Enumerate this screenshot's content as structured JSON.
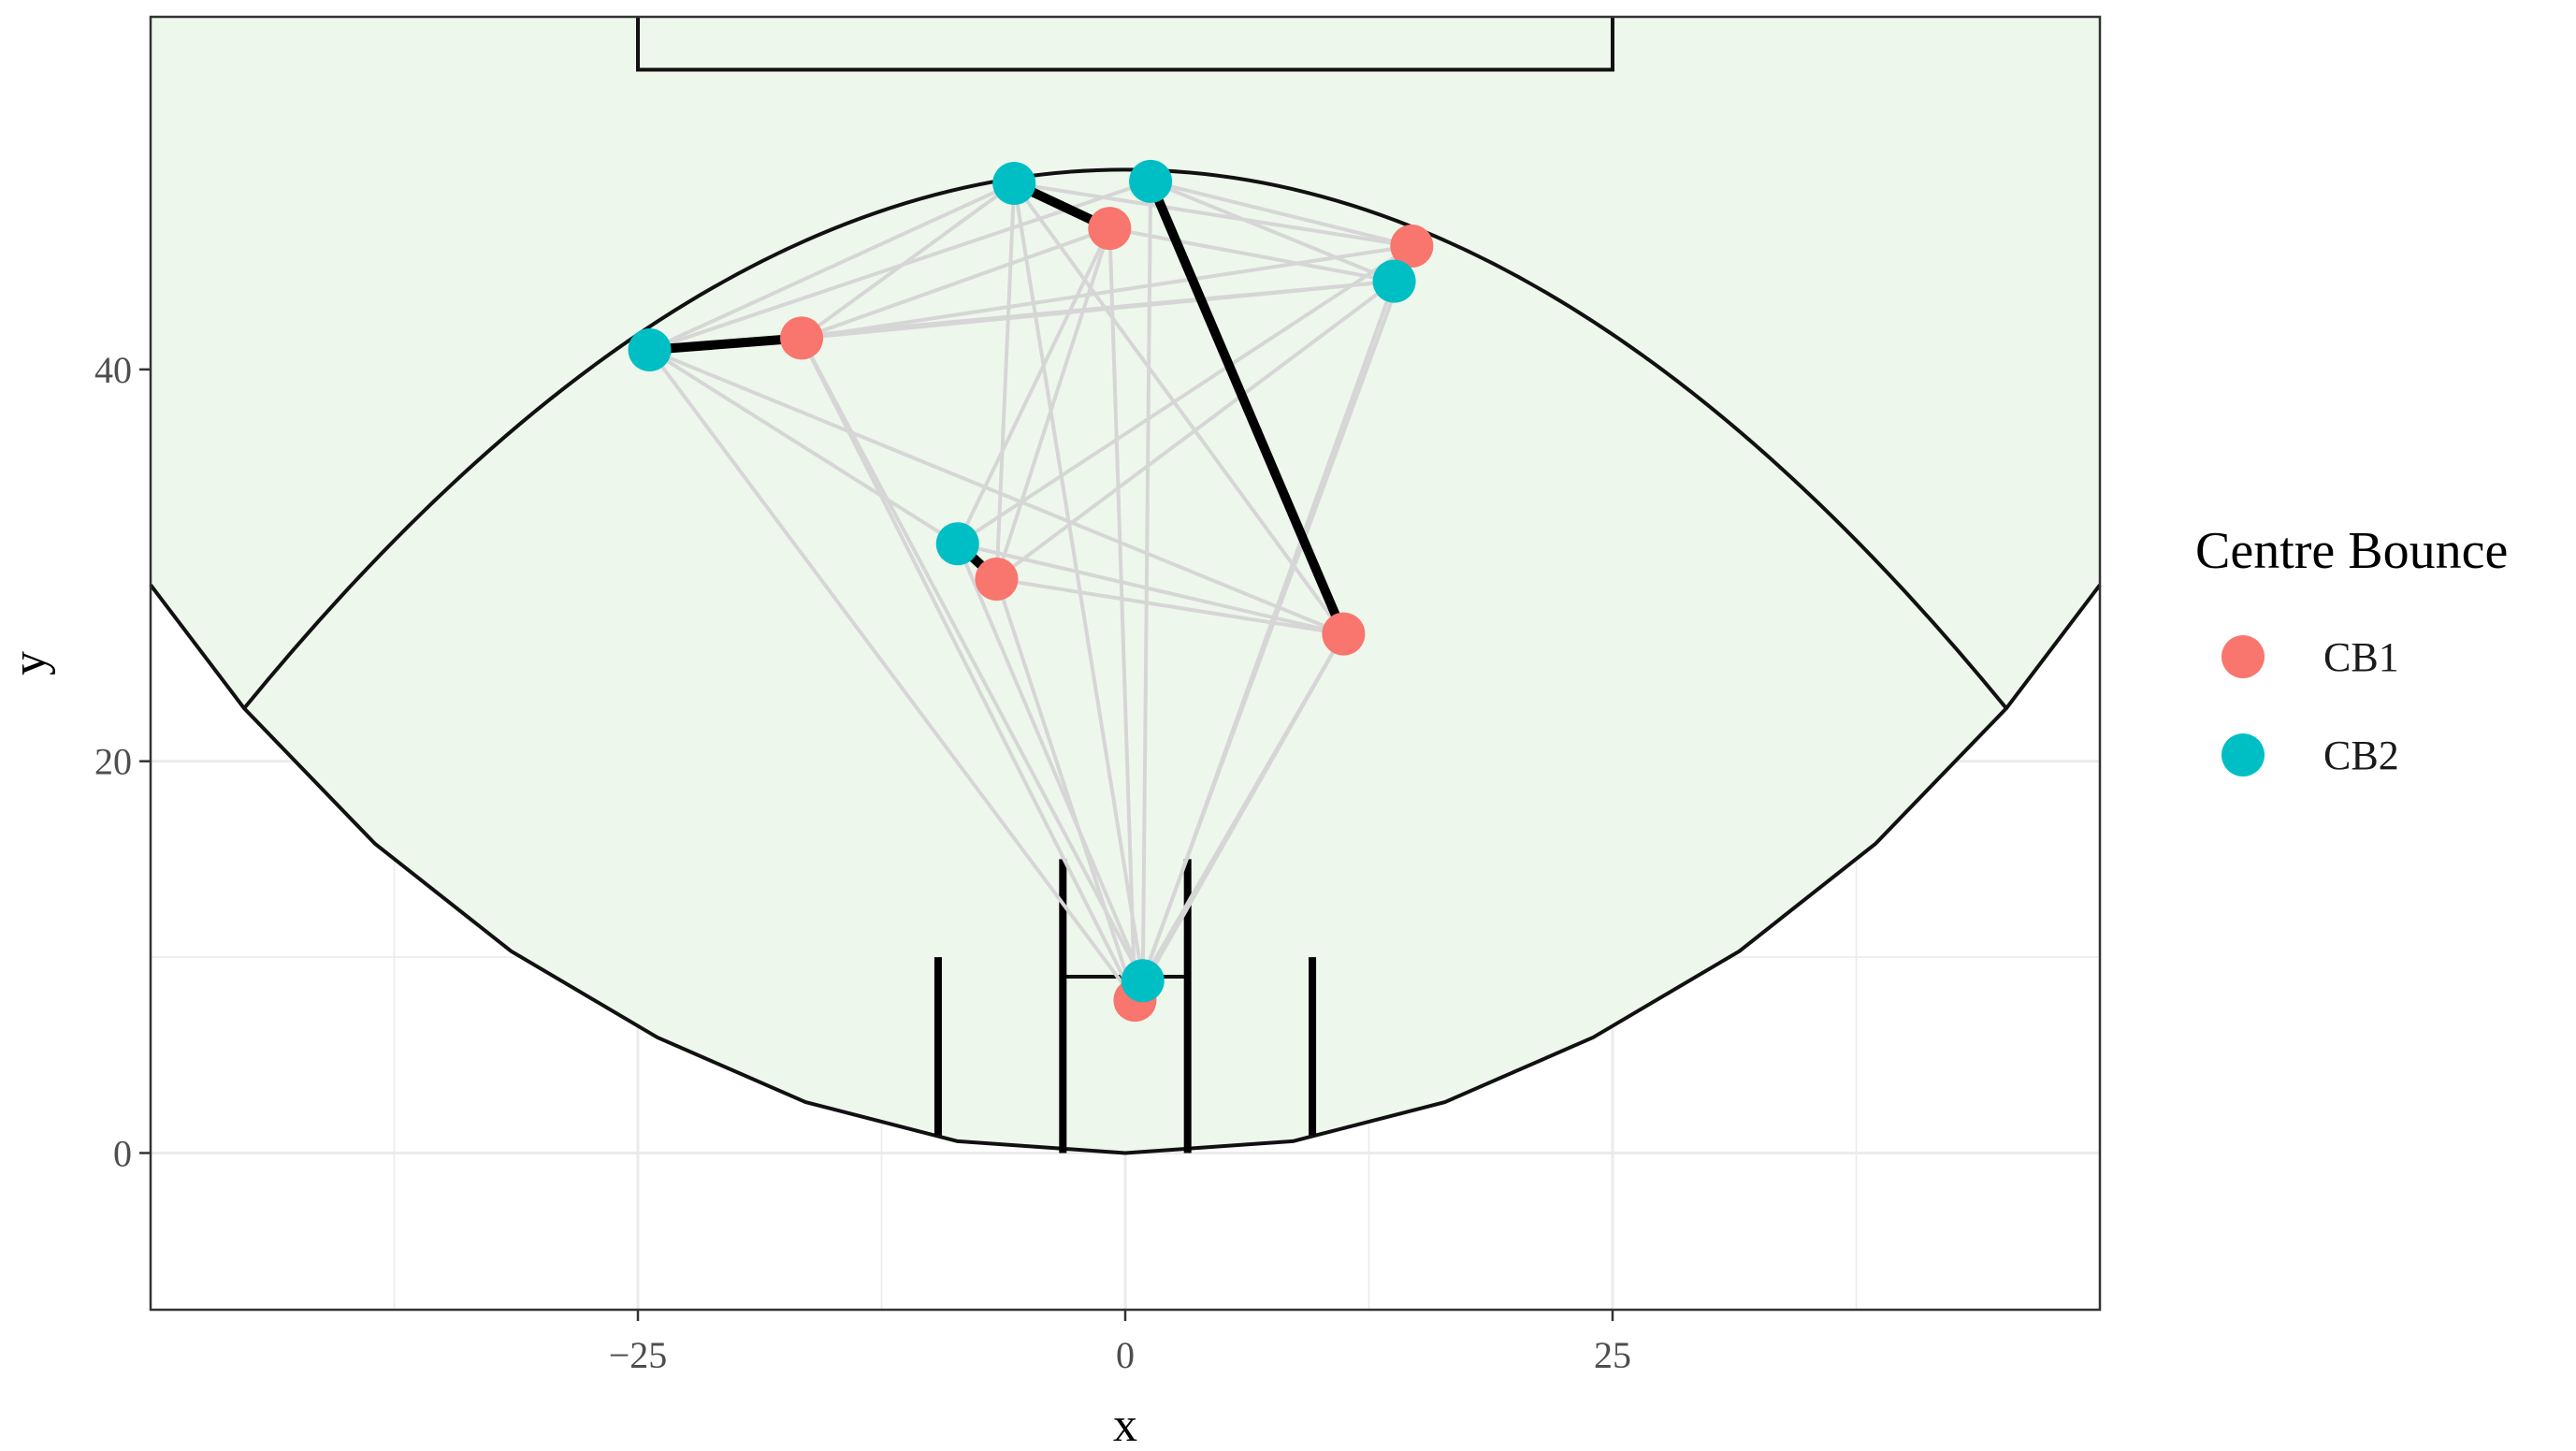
{
  "chart_data": {
    "type": "scatter",
    "xlabel": "x",
    "ylabel": "y",
    "xlim": [
      -50,
      50
    ],
    "ylim": [
      -8,
      58
    ],
    "x_ticks": [
      -25,
      0,
      25
    ],
    "x_tick_labels": [
      "−25",
      "0",
      "25"
    ],
    "y_ticks": [
      0,
      20,
      40
    ],
    "y_tick_labels": [
      "0",
      "20",
      "40"
    ],
    "grid": true,
    "legend": {
      "title": "Centre Bounce",
      "position": "right",
      "entries": [
        {
          "label": "CB1",
          "color": "#F8766D"
        },
        {
          "label": "CB2",
          "color": "#00BFC4"
        }
      ]
    },
    "series": [
      {
        "name": "CB1",
        "color": "#F8766D",
        "points": [
          {
            "x": -16.6,
            "y": 41.6
          },
          {
            "x": -0.8,
            "y": 47.2
          },
          {
            "x": 14.7,
            "y": 46.3
          },
          {
            "x": 11.2,
            "y": 26.5
          },
          {
            "x": -6.6,
            "y": 29.3
          },
          {
            "x": 0.5,
            "y": 7.8
          }
        ]
      },
      {
        "name": "CB2",
        "color": "#00BFC4",
        "points": [
          {
            "x": -24.4,
            "y": 41.0
          },
          {
            "x": -5.7,
            "y": 49.5
          },
          {
            "x": 1.3,
            "y": 49.6
          },
          {
            "x": 13.8,
            "y": 44.5
          },
          {
            "x": -8.6,
            "y": 31.1
          },
          {
            "x": 0.9,
            "y": 8.8
          }
        ]
      }
    ],
    "grey_links": [
      [
        [
          -24.4,
          41.0
        ],
        [
          -16.6,
          41.6
        ]
      ],
      [
        [
          -24.4,
          41.0
        ],
        [
          13.8,
          44.5
        ]
      ],
      [
        [
          -24.4,
          41.0
        ],
        [
          -5.7,
          49.5
        ]
      ],
      [
        [
          -24.4,
          41.0
        ],
        [
          1.3,
          49.6
        ]
      ],
      [
        [
          -24.4,
          41.0
        ],
        [
          -8.6,
          31.1
        ]
      ],
      [
        [
          -24.4,
          41.0
        ],
        [
          11.2,
          26.5
        ]
      ],
      [
        [
          -24.4,
          41.0
        ],
        [
          0.5,
          7.8
        ]
      ],
      [
        [
          -16.6,
          41.6
        ],
        [
          14.7,
          46.3
        ]
      ],
      [
        [
          -16.6,
          41.6
        ],
        [
          13.8,
          44.5
        ]
      ],
      [
        [
          -16.6,
          41.6
        ],
        [
          -5.7,
          49.5
        ]
      ],
      [
        [
          -16.6,
          41.6
        ],
        [
          -0.8,
          47.2
        ]
      ],
      [
        [
          -16.6,
          41.6
        ],
        [
          0.9,
          8.8
        ]
      ],
      [
        [
          -16.6,
          41.6
        ],
        [
          0.5,
          7.8
        ]
      ],
      [
        [
          -5.7,
          49.5
        ],
        [
          14.7,
          46.3
        ]
      ],
      [
        [
          -5.7,
          49.5
        ],
        [
          -6.6,
          29.3
        ]
      ],
      [
        [
          -5.7,
          49.5
        ],
        [
          0.9,
          8.8
        ]
      ],
      [
        [
          -5.7,
          49.5
        ],
        [
          11.2,
          26.5
        ]
      ],
      [
        [
          1.3,
          49.6
        ],
        [
          14.7,
          46.3
        ]
      ],
      [
        [
          1.3,
          49.6
        ],
        [
          13.8,
          44.5
        ]
      ],
      [
        [
          1.3,
          49.6
        ],
        [
          0.9,
          8.8
        ]
      ],
      [
        [
          -0.8,
          47.2
        ],
        [
          13.8,
          44.5
        ]
      ],
      [
        [
          -0.8,
          47.2
        ],
        [
          -8.6,
          31.1
        ]
      ],
      [
        [
          -0.8,
          47.2
        ],
        [
          -6.6,
          29.3
        ]
      ],
      [
        [
          -0.8,
          47.2
        ],
        [
          0.5,
          7.8
        ]
      ],
      [
        [
          14.7,
          46.3
        ],
        [
          -8.6,
          31.1
        ]
      ],
      [
        [
          14.7,
          46.3
        ],
        [
          0.5,
          7.8
        ]
      ],
      [
        [
          13.8,
          44.5
        ],
        [
          -6.6,
          29.3
        ]
      ],
      [
        [
          13.8,
          44.5
        ],
        [
          0.9,
          8.8
        ]
      ],
      [
        [
          -8.6,
          31.1
        ],
        [
          11.2,
          26.5
        ]
      ],
      [
        [
          -8.6,
          31.1
        ],
        [
          0.9,
          8.8
        ]
      ],
      [
        [
          -6.6,
          29.3
        ],
        [
          11.2,
          26.5
        ]
      ],
      [
        [
          -6.6,
          29.3
        ],
        [
          0.5,
          7.8
        ]
      ],
      [
        [
          11.2,
          26.5
        ],
        [
          0.9,
          8.8
        ]
      ],
      [
        [
          11.2,
          26.5
        ],
        [
          0.5,
          7.8
        ]
      ]
    ],
    "black_links": [
      [
        [
          -24.4,
          41.0
        ],
        [
          -16.6,
          41.6
        ]
      ],
      [
        [
          -5.7,
          49.5
        ],
        [
          -0.8,
          47.2
        ]
      ],
      [
        [
          1.3,
          49.6
        ],
        [
          11.2,
          26.5
        ]
      ],
      [
        [
          -8.6,
          31.1
        ],
        [
          -6.6,
          29.3
        ]
      ],
      [
        [
          0.9,
          8.8
        ],
        [
          0.5,
          7.8
        ]
      ]
    ],
    "field": {
      "fill": "#EEF7EC",
      "boundary": [
        [
          -50,
          29.0
        ],
        [
          -45.2,
          22.7
        ],
        [
          -38.5,
          15.8
        ],
        [
          -31.5,
          10.3
        ],
        [
          -24.0,
          5.9
        ],
        [
          -16.4,
          2.6
        ],
        [
          -8.6,
          0.6
        ],
        [
          0,
          0
        ],
        [
          8.6,
          0.6
        ],
        [
          16.4,
          2.6
        ],
        [
          24.0,
          5.9
        ],
        [
          31.5,
          10.3
        ],
        [
          38.5,
          15.8
        ],
        [
          45.2,
          22.7
        ],
        [
          50,
          29.0
        ]
      ],
      "arc": {
        "x_left": -45.2,
        "x_right": 45.2,
        "y_end": 22.7,
        "y_top": 50.2
      },
      "centre_square": {
        "x0": -25,
        "x1": 25,
        "y0": 55.3
      },
      "posts": [
        {
          "x": -9.6,
          "y0": 0.9,
          "y1": 10.0
        },
        {
          "x": -3.2,
          "y0": 0.0,
          "y1": 15.0
        },
        {
          "x": 3.2,
          "y0": 0.0,
          "y1": 15.0
        },
        {
          "x": 9.6,
          "y0": 0.9,
          "y1": 10.0
        }
      ],
      "goal_square": {
        "x0": -3.2,
        "x1": 3.2,
        "y": 9.0
      }
    }
  }
}
